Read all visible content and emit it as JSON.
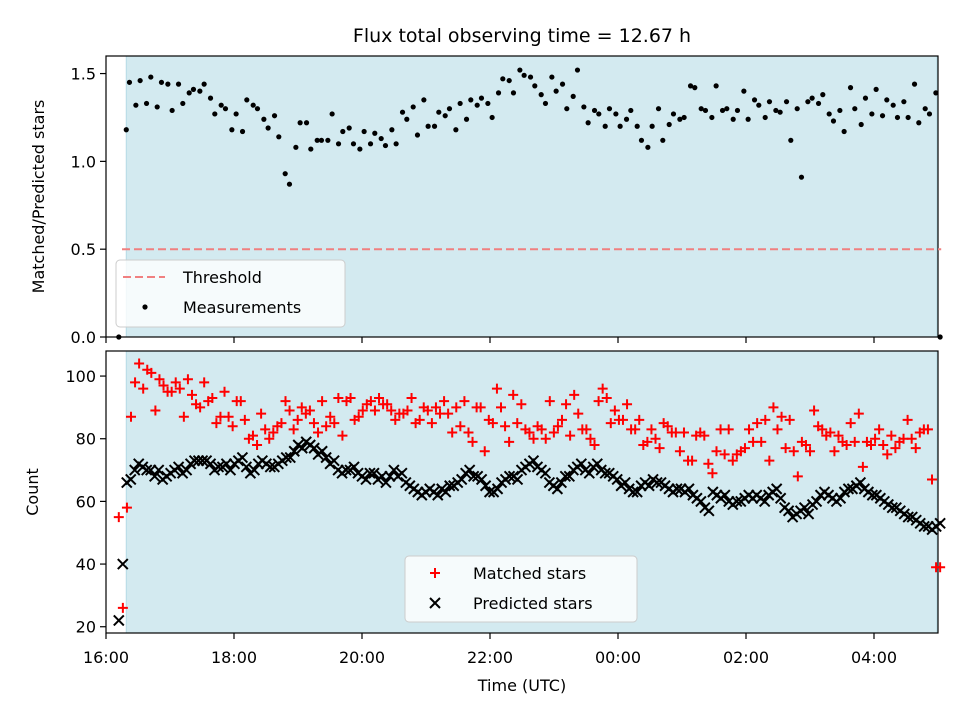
{
  "colors": {
    "observing_span": "#d3eaf0",
    "observing_edge": "#b6dbe5",
    "threshold": "#f08080",
    "measurements": "#000000",
    "matched": "#ff0000",
    "predicted": "#000000"
  },
  "chart_data": [
    {
      "type": "scatter",
      "title": "Flux total observing time = 12.67 h",
      "xlabel": "",
      "ylabel": "Matched/Predicted stars",
      "xlim": [
        "16:00",
        "05:00"
      ],
      "ylim": [
        0,
        1.6
      ],
      "yticks": [
        "0.0",
        "0.5",
        "1.0",
        "1.5"
      ],
      "observing_span": [
        "16:19",
        "04:59"
      ],
      "threshold": 0.5,
      "legend": {
        "placement": "lower-left",
        "entries": [
          "Threshold",
          "Measurements"
        ]
      },
      "series": [
        {
          "name": "Measurements",
          "marker": "dot",
          "points": [
            [
              "16:12",
              0.0
            ],
            [
              "16:19",
              1.18
            ],
            [
              "16:22",
              1.45
            ],
            [
              "16:28",
              1.32
            ],
            [
              "16:32",
              1.46
            ],
            [
              "16:38",
              1.33
            ],
            [
              "16:42",
              1.48
            ],
            [
              "16:48",
              1.31
            ],
            [
              "16:52",
              1.45
            ],
            [
              "16:58",
              1.44
            ],
            [
              "17:02",
              1.29
            ],
            [
              "17:08",
              1.44
            ],
            [
              "17:12",
              1.33
            ],
            [
              "17:18",
              1.39
            ],
            [
              "17:22",
              1.41
            ],
            [
              "17:28",
              1.4
            ],
            [
              "17:32",
              1.44
            ],
            [
              "17:38",
              1.36
            ],
            [
              "17:42",
              1.27
            ],
            [
              "17:48",
              1.32
            ],
            [
              "17:52",
              1.3
            ],
            [
              "17:58",
              1.18
            ],
            [
              "18:02",
              1.27
            ],
            [
              "18:08",
              1.17
            ],
            [
              "18:12",
              1.35
            ],
            [
              "18:18",
              1.32
            ],
            [
              "18:22",
              1.3
            ],
            [
              "18:28",
              1.24
            ],
            [
              "18:32",
              1.19
            ],
            [
              "18:38",
              1.26
            ],
            [
              "18:42",
              1.14
            ],
            [
              "18:48",
              0.93
            ],
            [
              "18:52",
              0.87
            ],
            [
              "18:58",
              1.08
            ],
            [
              "19:02",
              1.22
            ],
            [
              "19:08",
              1.22
            ],
            [
              "19:12",
              1.07
            ],
            [
              "19:18",
              1.12
            ],
            [
              "19:22",
              1.12
            ],
            [
              "19:28",
              1.12
            ],
            [
              "19:32",
              1.27
            ],
            [
              "19:38",
              1.1
            ],
            [
              "19:42",
              1.17
            ],
            [
              "19:48",
              1.19
            ],
            [
              "19:52",
              1.1
            ],
            [
              "19:58",
              1.07
            ],
            [
              "20:02",
              1.17
            ],
            [
              "20:08",
              1.1
            ],
            [
              "20:12",
              1.16
            ],
            [
              "20:18",
              1.13
            ],
            [
              "20:22",
              1.09
            ],
            [
              "20:28",
              1.18
            ],
            [
              "20:32",
              1.1
            ],
            [
              "20:38",
              1.28
            ],
            [
              "20:42",
              1.24
            ],
            [
              "20:48",
              1.31
            ],
            [
              "20:52",
              1.15
            ],
            [
              "20:58",
              1.35
            ],
            [
              "21:02",
              1.2
            ],
            [
              "21:08",
              1.2
            ],
            [
              "21:12",
              1.28
            ],
            [
              "21:18",
              1.26
            ],
            [
              "21:22",
              1.3
            ],
            [
              "21:28",
              1.18
            ],
            [
              "21:32",
              1.33
            ],
            [
              "21:38",
              1.24
            ],
            [
              "21:42",
              1.35
            ],
            [
              "21:48",
              1.32
            ],
            [
              "21:52",
              1.36
            ],
            [
              "21:58",
              1.33
            ],
            [
              "22:02",
              1.25
            ],
            [
              "22:08",
              1.39
            ],
            [
              "22:12",
              1.47
            ],
            [
              "22:18",
              1.46
            ],
            [
              "22:22",
              1.39
            ],
            [
              "22:28",
              1.52
            ],
            [
              "22:32",
              1.49
            ],
            [
              "22:38",
              1.48
            ],
            [
              "22:42",
              1.43
            ],
            [
              "22:48",
              1.38
            ],
            [
              "22:52",
              1.33
            ],
            [
              "22:58",
              1.48
            ],
            [
              "23:02",
              1.4
            ],
            [
              "23:08",
              1.44
            ],
            [
              "23:12",
              1.3
            ],
            [
              "23:18",
              1.37
            ],
            [
              "23:22",
              1.52
            ],
            [
              "23:28",
              1.31
            ],
            [
              "23:32",
              1.22
            ],
            [
              "23:38",
              1.29
            ],
            [
              "23:42",
              1.27
            ],
            [
              "23:48",
              1.2
            ],
            [
              "23:52",
              1.3
            ],
            [
              "23:58",
              1.27
            ],
            [
              "00:02",
              1.2
            ],
            [
              "00:08",
              1.24
            ],
            [
              "00:12",
              1.29
            ],
            [
              "00:18",
              1.2
            ],
            [
              "00:22",
              1.12
            ],
            [
              "00:28",
              1.08
            ],
            [
              "00:32",
              1.2
            ],
            [
              "00:38",
              1.3
            ],
            [
              "00:42",
              1.12
            ],
            [
              "00:48",
              1.21
            ],
            [
              "00:52",
              1.27
            ],
            [
              "00:58",
              1.24
            ],
            [
              "01:02",
              1.25
            ],
            [
              "01:08",
              1.43
            ],
            [
              "01:12",
              1.42
            ],
            [
              "01:18",
              1.3
            ],
            [
              "01:22",
              1.29
            ],
            [
              "01:28",
              1.25
            ],
            [
              "01:32",
              1.43
            ],
            [
              "01:38",
              1.29
            ],
            [
              "01:42",
              1.3
            ],
            [
              "01:48",
              1.24
            ],
            [
              "01:52",
              1.29
            ],
            [
              "01:58",
              1.4
            ],
            [
              "02:02",
              1.24
            ],
            [
              "02:08",
              1.35
            ],
            [
              "02:12",
              1.32
            ],
            [
              "02:18",
              1.25
            ],
            [
              "02:22",
              1.34
            ],
            [
              "02:28",
              1.29
            ],
            [
              "02:32",
              1.28
            ],
            [
              "02:38",
              1.34
            ],
            [
              "02:42",
              1.12
            ],
            [
              "02:48",
              1.3
            ],
            [
              "02:52",
              0.91
            ],
            [
              "02:58",
              1.34
            ],
            [
              "03:02",
              1.36
            ],
            [
              "03:08",
              1.33
            ],
            [
              "03:12",
              1.38
            ],
            [
              "03:18",
              1.27
            ],
            [
              "03:22",
              1.23
            ],
            [
              "03:28",
              1.29
            ],
            [
              "03:32",
              1.17
            ],
            [
              "03:38",
              1.42
            ],
            [
              "03:42",
              1.3
            ],
            [
              "03:48",
              1.21
            ],
            [
              "03:52",
              1.36
            ],
            [
              "03:58",
              1.27
            ],
            [
              "04:02",
              1.41
            ],
            [
              "04:08",
              1.26
            ],
            [
              "04:12",
              1.35
            ],
            [
              "04:18",
              1.32
            ],
            [
              "04:22",
              1.25
            ],
            [
              "04:28",
              1.34
            ],
            [
              "04:32",
              1.25
            ],
            [
              "04:38",
              1.44
            ],
            [
              "04:42",
              1.22
            ],
            [
              "04:48",
              1.3
            ],
            [
              "04:52",
              1.27
            ],
            [
              "04:58",
              1.39
            ],
            [
              "05:02",
              0.0
            ]
          ]
        }
      ]
    },
    {
      "type": "scatter",
      "title": "",
      "xlabel": "Time (UTC)",
      "ylabel": "Count",
      "xlim": [
        "16:00",
        "05:00"
      ],
      "ylim": [
        18,
        108
      ],
      "yticks": [
        "20",
        "40",
        "60",
        "80",
        "100"
      ],
      "xticks": [
        "16:00",
        "18:00",
        "20:00",
        "22:00",
        "00:00",
        "02:00",
        "04:00"
      ],
      "observing_span": [
        "16:19",
        "04:59"
      ],
      "legend": {
        "placement": "lower-center",
        "entries": [
          "Matched stars",
          "Predicted stars"
        ]
      },
      "series": [
        {
          "name": "Matched stars",
          "marker": "plus",
          "values": [
            55,
            26,
            58,
            87,
            98,
            104,
            96,
            102,
            101,
            89,
            99,
            97,
            95,
            95,
            98,
            96,
            87,
            99,
            94,
            91,
            90,
            98,
            92,
            93,
            85,
            87,
            95,
            87,
            84,
            92,
            92,
            86,
            80,
            81,
            78,
            88,
            83,
            80,
            82,
            84,
            85,
            92,
            89,
            83,
            86,
            90,
            88,
            89,
            85,
            82,
            92,
            84,
            87,
            85,
            93,
            81,
            92,
            93,
            86,
            87,
            89,
            91,
            92,
            89,
            93,
            91,
            91,
            89,
            86,
            88,
            88,
            89,
            93,
            85,
            86,
            90,
            89,
            85,
            90,
            88,
            92,
            88,
            82,
            90,
            84,
            92,
            82,
            79,
            90,
            90,
            76,
            86,
            85,
            96,
            90,
            84,
            79,
            94,
            85,
            91,
            83,
            82,
            80,
            84,
            83,
            80,
            92,
            82,
            84,
            86,
            91,
            81,
            94,
            88,
            83,
            83,
            80,
            78,
            92,
            96,
            93,
            85,
            89,
            86,
            86,
            91,
            83,
            83,
            86,
            78,
            79,
            83,
            80,
            77,
            85,
            84,
            82,
            82,
            76,
            82,
            73,
            73,
            81,
            82,
            81,
            72,
            69,
            76,
            83,
            75,
            83,
            73,
            75,
            76,
            77,
            83,
            79,
            85,
            79,
            86,
            73,
            90,
            83,
            87,
            77,
            86,
            76,
            68,
            79,
            78,
            76,
            89,
            84,
            83,
            81,
            82,
            76,
            81,
            79,
            78,
            85,
            79,
            88,
            71,
            79,
            78,
            80,
            83,
            78,
            75,
            81,
            77,
            79,
            80,
            86,
            80,
            77,
            82,
            83,
            83,
            67,
            39,
            39
          ]
        },
        {
          "name": "Predicted stars",
          "marker": "x",
          "values": [
            22,
            40,
            66,
            67,
            70,
            72,
            71,
            70,
            70,
            68,
            70,
            67,
            68,
            69,
            70,
            71,
            69,
            70,
            72,
            73,
            73,
            73,
            73,
            72,
            70,
            71,
            71,
            72,
            70,
            72,
            73,
            74,
            71,
            69,
            70,
            72,
            73,
            72,
            71,
            71,
            72,
            73,
            74,
            74,
            76,
            78,
            77,
            79,
            78,
            77,
            75,
            76,
            74,
            72,
            73,
            70,
            69,
            70,
            70,
            71,
            69,
            68,
            67,
            69,
            69,
            67,
            68,
            66,
            68,
            70,
            68,
            69,
            66,
            65,
            64,
            63,
            62,
            63,
            64,
            63,
            62,
            64,
            63,
            65,
            65,
            66,
            67,
            69,
            70,
            68,
            68,
            67,
            65,
            63,
            63,
            64,
            66,
            67,
            68,
            68,
            67,
            70,
            71,
            72,
            73,
            71,
            70,
            69,
            66,
            65,
            64,
            66,
            68,
            68,
            70,
            71,
            72,
            70,
            69,
            71,
            72,
            70,
            69,
            69,
            68,
            67,
            65,
            66,
            64,
            63,
            63,
            65,
            66,
            65,
            67,
            66,
            66,
            65,
            64,
            63,
            64,
            64,
            63,
            64,
            62,
            61,
            60,
            58,
            57,
            63,
            62,
            61,
            62,
            60,
            59,
            60,
            60,
            61,
            62,
            61,
            62,
            61,
            60,
            62,
            63,
            64,
            61,
            58,
            57,
            55,
            56,
            57,
            58,
            56,
            59,
            60,
            62,
            63,
            62,
            61,
            60,
            61,
            63,
            64,
            64,
            65,
            66,
            64,
            63,
            62,
            62,
            61,
            60,
            59,
            58,
            58,
            57,
            56,
            55,
            55,
            54,
            53,
            52,
            52,
            51,
            52,
            53
          ]
        }
      ]
    }
  ]
}
